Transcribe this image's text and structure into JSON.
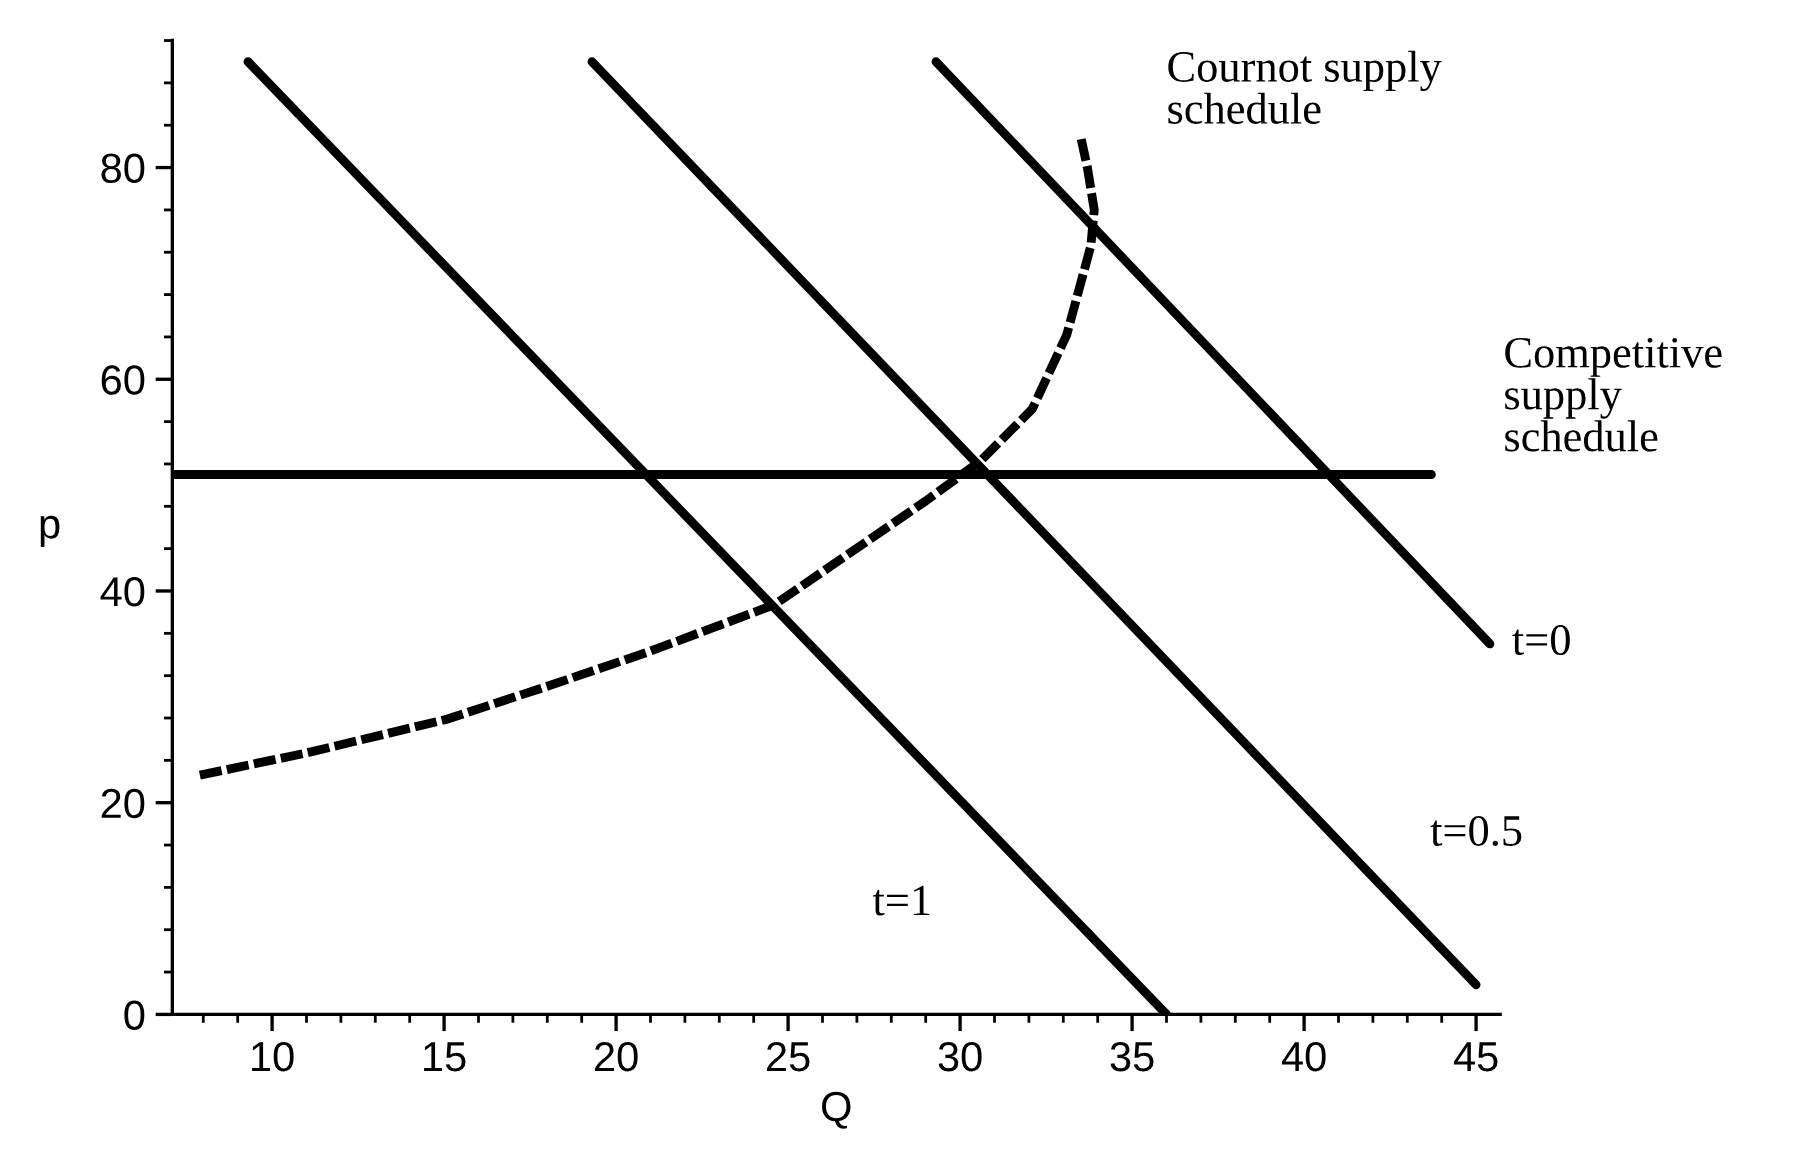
{
  "chart_data": {
    "type": "line",
    "xlabel": "Q",
    "ylabel": "p",
    "xlim": [
      7.1,
      45.7
    ],
    "ylim": [
      0,
      92
    ],
    "xticks": [
      10,
      15,
      20,
      25,
      30,
      35,
      40,
      45
    ],
    "yticks": [
      0,
      20,
      40,
      60,
      80
    ],
    "grid": false,
    "legend": false,
    "marker": "none",
    "series": [
      {
        "name": "t=0",
        "color": "#000000",
        "x": [
          29.3,
          45.4
        ],
        "values": [
          90,
          35
        ]
      },
      {
        "name": "t=0.5",
        "color": "#000000",
        "x": [
          19.3,
          45.0
        ],
        "values": [
          90,
          2.8
        ]
      },
      {
        "name": "t=1",
        "color": "#000000",
        "x": [
          9.3,
          36.0
        ],
        "values": [
          90,
          0
        ]
      },
      {
        "name": "Competitive\nsupply\nschedule",
        "color": "#000000",
        "x": [
          7.1,
          43.7
        ],
        "values": [
          51,
          51
        ]
      },
      {
        "name": "Cournot supply\nschedule",
        "color": "#000000",
        "line_style": "dashed",
        "x": [
          7.9,
          11.0,
          15.1,
          18.0,
          20.9,
          24.6,
          29.0,
          30.6,
          32.1,
          33.1,
          33.8,
          33.9,
          33.7,
          33.5
        ],
        "values": [
          22.6,
          24.7,
          27.9,
          31.0,
          34.2,
          38.7,
          48.5,
          52.3,
          57.2,
          64.2,
          72.6,
          76,
          80,
          83
        ]
      }
    ]
  }
}
